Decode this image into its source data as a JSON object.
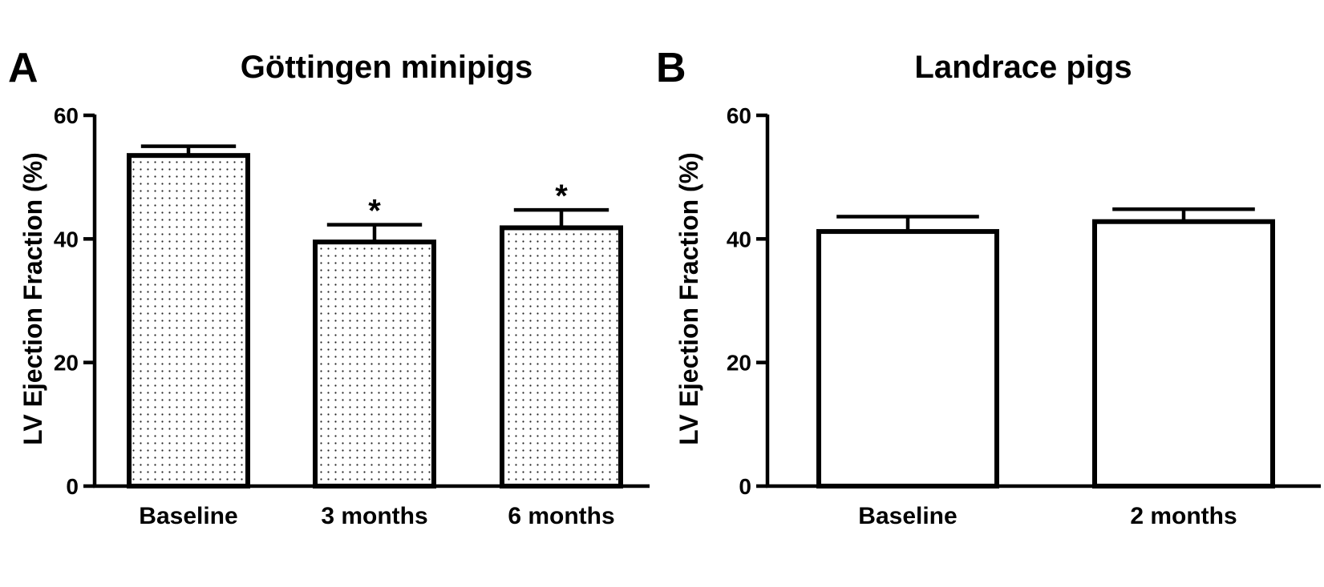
{
  "chart_data": [
    {
      "panel": "A",
      "type": "bar",
      "title": "Göttingen minipigs",
      "xlabel": "",
      "ylabel": "LV Ejection Fraction (%)",
      "ylim": [
        0,
        60
      ],
      "yticks": [
        "0",
        "20",
        "40",
        "60"
      ],
      "categories": [
        "Baseline",
        "3 months",
        "6 months"
      ],
      "values": [
        53.5,
        39.5,
        41.8
      ],
      "errors": [
        1.5,
        2.8,
        2.9
      ],
      "significance": [
        "",
        "*",
        "*"
      ],
      "fill": "dotted"
    },
    {
      "panel": "B",
      "type": "bar",
      "title": "Landrace pigs",
      "xlabel": "",
      "ylabel": "LV Ejection Fraction (%)",
      "ylim": [
        0,
        60
      ],
      "yticks": [
        "0",
        "20",
        "40",
        "60"
      ],
      "categories": [
        "Baseline",
        "2 months"
      ],
      "values": [
        41.2,
        42.8
      ],
      "errors": [
        2.4,
        2.0
      ],
      "significance": [
        "",
        ""
      ],
      "fill": "white"
    }
  ]
}
